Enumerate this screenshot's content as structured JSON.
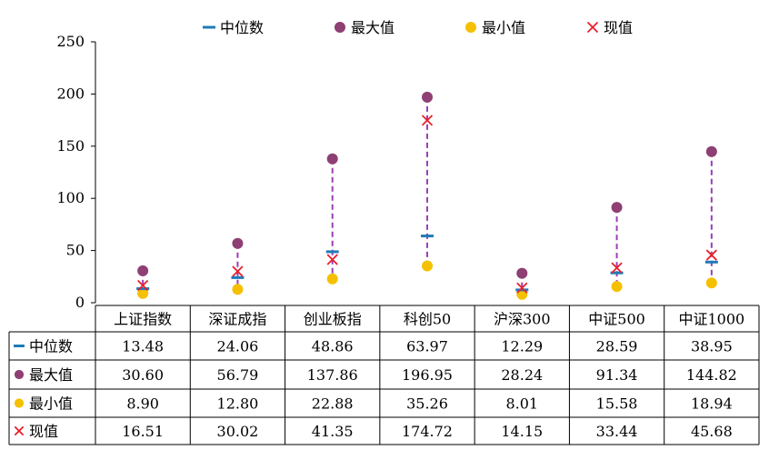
{
  "chart_data": {
    "type": "scatter",
    "categories": [
      "上证指数",
      "深证成指",
      "创业板指",
      "科创50",
      "沪深300",
      "中证500",
      "中证1000"
    ],
    "ylim": [
      0,
      250
    ],
    "yticks": [
      "0",
      "50",
      "100",
      "150",
      "200",
      "250"
    ],
    "ytick_values": [
      0,
      50,
      100,
      150,
      200,
      250
    ],
    "grid": false,
    "legend_position": "top",
    "series": [
      {
        "name": "中位数",
        "marker": "dash",
        "color": "#1F7BB8",
        "values": [
          13.48,
          24.06,
          48.86,
          63.97,
          12.29,
          28.59,
          38.95
        ],
        "labels": [
          "13.48",
          "24.06",
          "48.86",
          "63.97",
          "12.29",
          "28.59",
          "38.95"
        ]
      },
      {
        "name": "最大值",
        "marker": "circle",
        "color": "#8E3F73",
        "values": [
          30.6,
          56.79,
          137.86,
          196.95,
          28.24,
          91.34,
          144.82
        ],
        "labels": [
          "30.60",
          "56.79",
          "137.86",
          "196.95",
          "28.24",
          "91.34",
          "144.82"
        ]
      },
      {
        "name": "最小值",
        "marker": "circle",
        "color": "#F5C000",
        "values": [
          8.9,
          12.8,
          22.88,
          35.26,
          8.01,
          15.58,
          18.94
        ],
        "labels": [
          "8.90",
          "12.80",
          "22.88",
          "35.26",
          "8.01",
          "15.58",
          "18.94"
        ]
      },
      {
        "name": "现值",
        "marker": "x",
        "color": "#E8202A",
        "values": [
          16.51,
          30.02,
          41.35,
          174.72,
          14.15,
          33.44,
          45.68
        ],
        "labels": [
          "16.51",
          "30.02",
          "41.35",
          "174.72",
          "14.15",
          "33.44",
          "45.68"
        ]
      }
    ],
    "range_line_color": "#9B3FB5"
  }
}
